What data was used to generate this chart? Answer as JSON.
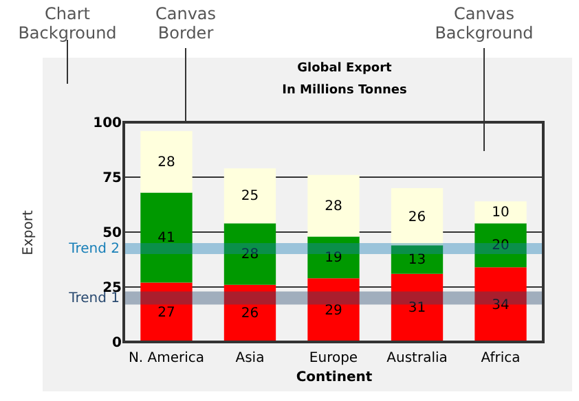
{
  "chart_data": {
    "type": "bar",
    "title": "Global Export",
    "subtitle": "In Millions Tonnes",
    "xlabel": "Continent",
    "ylabel": "Export",
    "annotations": [
      "Chart Background",
      "Canvas Border",
      "Canvas Background"
    ],
    "categories": [
      "N. America",
      "Asia",
      "Europe",
      "Australia",
      "Africa"
    ],
    "stacked": true,
    "data_labels": true,
    "grid": "y",
    "series": [
      {
        "color": "#ff0000",
        "values": [
          27,
          26,
          29,
          31,
          34
        ]
      },
      {
        "color": "#009900",
        "values": [
          41,
          28,
          19,
          13,
          20
        ]
      },
      {
        "color": "#ffffdd",
        "values": [
          28,
          25,
          28,
          26,
          10
        ]
      }
    ],
    "ylim": [
      0,
      100
    ],
    "yticks": [
      0,
      25,
      50,
      75,
      100
    ],
    "bands": [
      {
        "axis": "y",
        "from": 17,
        "to": 23,
        "label": "Trend 1",
        "color": "#2a4a70"
      },
      {
        "axis": "y",
        "from": 40,
        "to": 45,
        "label": "Trend 2",
        "color": "#1a80b8"
      }
    ]
  }
}
